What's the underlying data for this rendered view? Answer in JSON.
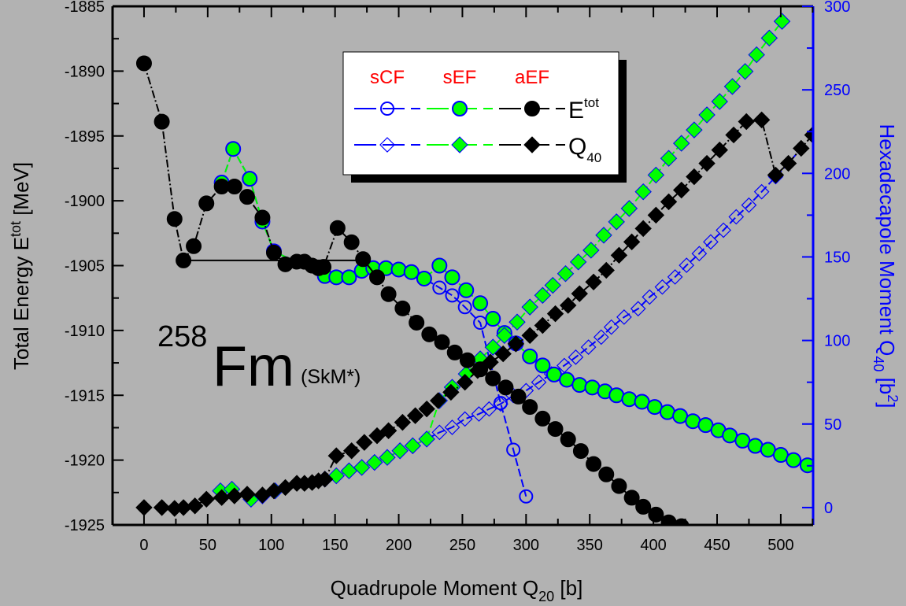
{
  "chart_data": {
    "type": "line",
    "title": {
      "mass_number": "258",
      "element": "Fm",
      "interaction": "(SkM*)"
    },
    "xlabel": {
      "text": "Quadrupole Moment Q",
      "sub": "20",
      "unit": " [b]"
    },
    "ylabel_left": {
      "text": "Total Energy E",
      "sup": "tot",
      "unit": " [MeV]"
    },
    "ylabel_right": {
      "text": "Hexadecapole Moment Q",
      "sub": "40",
      "unit": " [b",
      "sup": "2",
      "close": "]"
    },
    "xlim": [
      -24.7,
      525.4
    ],
    "ylim_left": [
      -1925,
      -1885
    ],
    "ylim_right": [
      -10.4,
      300
    ],
    "xticks": [
      0,
      50,
      100,
      150,
      200,
      250,
      300,
      350,
      400,
      450,
      500
    ],
    "yticks_left": [
      -1885,
      -1890,
      -1895,
      -1900,
      -1905,
      -1910,
      -1915,
      -1920,
      -1925
    ],
    "yticks_right": [
      0,
      50,
      100,
      150,
      200,
      250,
      300
    ],
    "grid": false,
    "legend": {
      "position": "top-center",
      "columns": [
        "sCF",
        "sEF",
        "aEF"
      ],
      "rows": [
        {
          "label": "E",
          "sup": "tot"
        },
        {
          "label": "Q",
          "sub": "40"
        }
      ]
    },
    "tie_line": {
      "q": [
        31,
        172
      ],
      "e": -1904.6
    },
    "series": [
      {
        "name": "sCF E_tot",
        "axis": "left",
        "marker": "circle-open",
        "color": "#0000ff",
        "points": [
          [
            61,
            -1898.6
          ],
          [
            70,
            -1896.0
          ],
          [
            83,
            -1898.3
          ],
          [
            93,
            -1901.6
          ],
          [
            102,
            -1903.9
          ],
          [
            142,
            -1905.8
          ],
          [
            151,
            -1905.9
          ],
          [
            161,
            -1905.9
          ],
          [
            171,
            -1905.4
          ],
          [
            180,
            -1905.2
          ],
          [
            190,
            -1905.2
          ],
          [
            200,
            -1905.3
          ],
          [
            210,
            -1905.5
          ],
          [
            220,
            -1906.0
          ],
          [
            232,
            -1906.7
          ],
          [
            242,
            -1907.3
          ],
          [
            252,
            -1908.2
          ],
          [
            264,
            -1909.4
          ],
          [
            280,
            -1915.6
          ],
          [
            290,
            -1919.2
          ],
          [
            300,
            -1922.8
          ]
        ]
      },
      {
        "name": "sCF Q40",
        "axis": "right",
        "marker": "diamond-open",
        "color": "#0000ff",
        "points": [
          [
            60,
            10
          ],
          [
            69,
            11
          ],
          [
            84,
            5
          ],
          [
            93,
            7
          ],
          [
            103,
            10
          ],
          [
            142,
            17
          ],
          [
            151,
            19
          ],
          [
            161,
            22
          ],
          [
            171,
            24
          ],
          [
            181,
            27
          ],
          [
            191,
            30
          ],
          [
            201,
            34
          ],
          [
            211,
            37
          ],
          [
            222,
            41
          ],
          [
            232,
            45
          ],
          [
            242,
            48
          ],
          [
            252,
            53
          ],
          [
            263,
            56
          ],
          [
            271,
            59
          ],
          [
            280,
            62
          ],
          [
            290,
            67
          ],
          [
            300,
            70
          ],
          [
            310,
            75
          ],
          [
            320,
            80
          ],
          [
            330,
            85
          ],
          [
            339,
            90
          ],
          [
            349,
            96
          ],
          [
            359,
            102
          ],
          [
            367,
            108
          ],
          [
            377,
            114
          ],
          [
            388,
            119
          ],
          [
            397,
            126
          ],
          [
            407,
            132
          ],
          [
            417,
            138
          ],
          [
            426,
            145
          ],
          [
            436,
            152
          ],
          [
            445,
            159
          ],
          [
            455,
            166
          ],
          [
            465,
            174
          ],
          [
            475,
            181
          ],
          [
            485,
            189
          ],
          [
            496,
            198
          ],
          [
            506,
            206
          ],
          [
            516,
            215
          ]
        ]
      },
      {
        "name": "sEF E_tot",
        "axis": "left",
        "marker": "circle-filled",
        "color": "#00ff00",
        "points": [
          [
            61,
            -1898.6
          ],
          [
            70,
            -1896.0
          ],
          [
            83,
            -1898.3
          ],
          [
            93,
            -1901.6
          ],
          [
            102,
            -1903.9
          ],
          [
            142,
            -1905.8
          ],
          [
            151,
            -1905.9
          ],
          [
            161,
            -1905.9
          ],
          [
            171,
            -1905.4
          ],
          [
            180,
            -1905.2
          ],
          [
            190,
            -1905.2
          ],
          [
            200,
            -1905.3
          ],
          [
            210,
            -1905.5
          ],
          [
            220,
            -1906.0
          ],
          [
            232,
            -1905.0
          ],
          [
            242,
            -1905.9
          ],
          [
            253,
            -1906.9
          ],
          [
            264,
            -1907.9
          ],
          [
            274,
            -1909.1
          ],
          [
            283,
            -1910.2
          ],
          [
            292,
            -1911.0
          ],
          [
            303,
            -1912.0
          ],
          [
            313,
            -1912.7
          ],
          [
            322,
            -1913.4
          ],
          [
            332,
            -1913.8
          ],
          [
            342,
            -1914.2
          ],
          [
            352,
            -1914.4
          ],
          [
            362,
            -1914.7
          ],
          [
            371,
            -1915.0
          ],
          [
            381,
            -1915.3
          ],
          [
            391,
            -1915.5
          ],
          [
            401,
            -1915.9
          ],
          [
            411,
            -1916.3
          ],
          [
            421,
            -1916.6
          ],
          [
            431,
            -1917.0
          ],
          [
            441,
            -1917.3
          ],
          [
            451,
            -1917.7
          ],
          [
            460,
            -1918.1
          ],
          [
            470,
            -1918.5
          ],
          [
            480,
            -1918.9
          ],
          [
            490,
            -1919.2
          ],
          [
            500,
            -1919.6
          ],
          [
            510,
            -1920.0
          ],
          [
            521,
            -1920.4
          ]
        ]
      },
      {
        "name": "sEF Q40",
        "axis": "right",
        "marker": "diamond-filled",
        "color": "#00ff00",
        "points": [
          [
            60,
            10
          ],
          [
            69,
            11
          ],
          [
            84,
            5
          ],
          [
            93,
            7
          ],
          [
            103,
            10
          ],
          [
            142,
            17
          ],
          [
            151,
            19
          ],
          [
            161,
            22
          ],
          [
            171,
            24
          ],
          [
            181,
            27
          ],
          [
            191,
            30
          ],
          [
            201,
            34
          ],
          [
            211,
            37
          ],
          [
            222,
            41
          ],
          [
            232,
            64
          ],
          [
            242,
            72
          ],
          [
            253,
            80
          ],
          [
            264,
            89
          ],
          [
            274,
            96
          ],
          [
            283,
            103
          ],
          [
            293,
            111
          ],
          [
            303,
            120
          ],
          [
            313,
            127
          ],
          [
            321,
            133
          ],
          [
            331,
            140
          ],
          [
            341,
            147
          ],
          [
            351,
            154
          ],
          [
            361,
            163
          ],
          [
            371,
            171
          ],
          [
            381,
            179
          ],
          [
            392,
            189
          ],
          [
            402,
            199
          ],
          [
            412,
            209
          ],
          [
            422,
            218
          ],
          [
            432,
            226
          ],
          [
            442,
            235
          ],
          [
            452,
            243
          ],
          [
            462,
            252
          ],
          [
            472,
            261
          ],
          [
            481,
            271
          ],
          [
            491,
            281
          ],
          [
            501,
            291
          ]
        ]
      },
      {
        "name": "aEF E_tot",
        "axis": "left",
        "marker": "circle-filled",
        "color": "#000000",
        "points": [
          [
            0,
            -1889.4
          ],
          [
            14,
            -1893.9
          ],
          [
            24,
            -1901.4
          ],
          [
            31,
            -1904.6
          ],
          [
            39,
            -1903.5
          ],
          [
            49,
            -1900.2
          ],
          [
            61,
            -1898.9
          ],
          [
            71,
            -1898.9
          ],
          [
            81,
            -1899.7
          ],
          [
            93,
            -1901.3
          ],
          [
            102,
            -1904.0
          ],
          [
            111,
            -1904.9
          ],
          [
            120,
            -1904.7
          ],
          [
            126,
            -1904.7
          ],
          [
            132,
            -1905.0
          ],
          [
            137,
            -1905.2
          ],
          [
            141,
            -1905.1
          ],
          [
            152,
            -1902.1
          ],
          [
            163,
            -1903.2
          ],
          [
            172,
            -1904.5
          ],
          [
            183,
            -1905.9
          ],
          [
            192,
            -1907.2
          ],
          [
            203,
            -1908.3
          ],
          [
            214,
            -1909.4
          ],
          [
            224,
            -1910.3
          ],
          [
            234,
            -1910.9
          ],
          [
            244,
            -1911.7
          ],
          [
            254,
            -1912.3
          ],
          [
            264,
            -1913.0
          ],
          [
            274,
            -1913.7
          ],
          [
            284,
            -1914.4
          ],
          [
            294,
            -1915.1
          ],
          [
            303,
            -1915.9
          ],
          [
            313,
            -1916.8
          ],
          [
            323,
            -1917.6
          ],
          [
            333,
            -1918.4
          ],
          [
            343,
            -1919.3
          ],
          [
            353,
            -1920.3
          ],
          [
            363,
            -1921.1
          ],
          [
            373,
            -1922.0
          ],
          [
            383,
            -1922.9
          ],
          [
            392,
            -1923.6
          ],
          [
            402,
            -1924.2
          ],
          [
            412,
            -1924.8
          ],
          [
            422,
            -1925.1
          ]
        ]
      },
      {
        "name": "aEF Q40",
        "axis": "right",
        "marker": "diamond-filled",
        "color": "#000000",
        "points": [
          [
            0,
            0
          ],
          [
            14,
            0
          ],
          [
            24,
            -0.5
          ],
          [
            31,
            0
          ],
          [
            40,
            1
          ],
          [
            49,
            5
          ],
          [
            61,
            6
          ],
          [
            71,
            7
          ],
          [
            81,
            8
          ],
          [
            93,
            7.5
          ],
          [
            102,
            10
          ],
          [
            111,
            12
          ],
          [
            120,
            14.5
          ],
          [
            126,
            14.5
          ],
          [
            132,
            15
          ],
          [
            137,
            16
          ],
          [
            142,
            17
          ],
          [
            151,
            31
          ],
          [
            163,
            34
          ],
          [
            173,
            39
          ],
          [
            183,
            43
          ],
          [
            192,
            46
          ],
          [
            203,
            51
          ],
          [
            213,
            55
          ],
          [
            222,
            59
          ],
          [
            231,
            64
          ],
          [
            241,
            69
          ],
          [
            252,
            75
          ],
          [
            262,
            82
          ],
          [
            272,
            87
          ],
          [
            282,
            92
          ],
          [
            292,
            98
          ],
          [
            303,
            103
          ],
          [
            313,
            109
          ],
          [
            323,
            116
          ],
          [
            333,
            121
          ],
          [
            342,
            128
          ],
          [
            353,
            135
          ],
          [
            363,
            142
          ],
          [
            373,
            151
          ],
          [
            383,
            159
          ],
          [
            392,
            167
          ],
          [
            402,
            175
          ],
          [
            412,
            183
          ],
          [
            422,
            190
          ],
          [
            432,
            198
          ],
          [
            442,
            206
          ],
          [
            452,
            214
          ],
          [
            463,
            223
          ],
          [
            473,
            231
          ],
          [
            485,
            232
          ],
          [
            496,
            199
          ],
          [
            506,
            206
          ],
          [
            516,
            215
          ],
          [
            525,
            223
          ]
        ]
      }
    ]
  },
  "colors": {
    "background": "#b2b2b2",
    "sCF": "#0000ff",
    "sEF": "#00ff00",
    "aEF": "#000000",
    "legend_header": "#ff0000",
    "right_axis": "#0000ff"
  }
}
